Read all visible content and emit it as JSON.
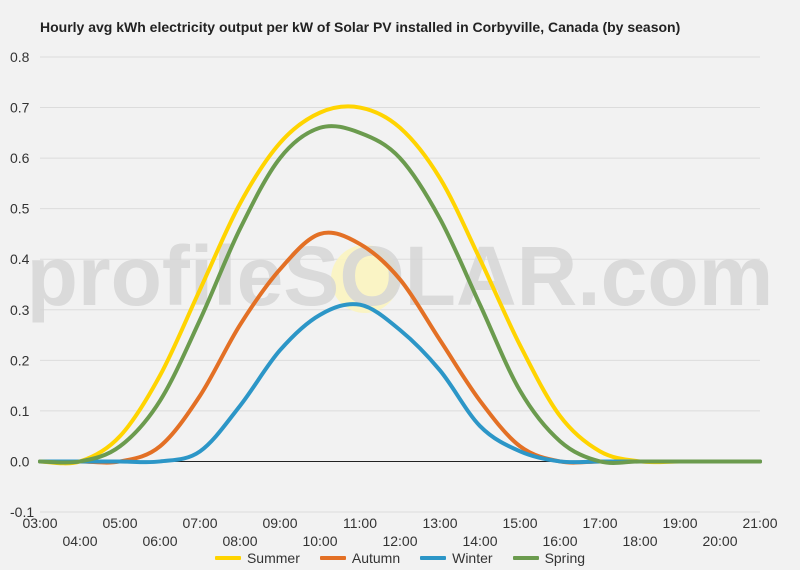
{
  "chart_data": {
    "type": "line",
    "title": "Hourly avg kWh electricity output per kW of Solar PV installed in Corbyville, Canada (by season)",
    "xlabel": "",
    "ylabel": "",
    "ylim": [
      -0.1,
      0.8
    ],
    "yticks": [
      "-0.1",
      "0.0",
      "0.1",
      "0.2",
      "0.3",
      "0.4",
      "0.5",
      "0.6",
      "0.7",
      "0.8"
    ],
    "xlim": [
      3,
      21
    ],
    "xticks": [
      "03:00",
      "04:00",
      "05:00",
      "06:00",
      "07:00",
      "08:00",
      "09:00",
      "10:00",
      "11:00",
      "12:00",
      "13:00",
      "14:00",
      "15:00",
      "16:00",
      "17:00",
      "18:00",
      "19:00",
      "20:00",
      "21:00"
    ],
    "x": [
      3,
      4,
      5,
      6,
      7,
      8,
      9,
      10,
      11,
      12,
      13,
      14,
      15,
      16,
      17,
      18,
      19,
      20,
      21
    ],
    "grid": true,
    "legend_position": "bottom",
    "watermark": "profileSOLAR.com",
    "series": [
      {
        "name": "Summer",
        "color": "#ffd400",
        "values": [
          0.0,
          0.0,
          0.05,
          0.17,
          0.34,
          0.51,
          0.63,
          0.69,
          0.7,
          0.66,
          0.56,
          0.4,
          0.23,
          0.09,
          0.02,
          0.0,
          0.0,
          0.0,
          0.0
        ]
      },
      {
        "name": "Autumn",
        "color": "#e37025",
        "values": [
          0.0,
          0.0,
          0.0,
          0.03,
          0.13,
          0.27,
          0.38,
          0.45,
          0.43,
          0.36,
          0.24,
          0.12,
          0.03,
          0.0,
          0.0,
          0.0,
          0.0,
          0.0,
          0.0
        ]
      },
      {
        "name": "Winter",
        "color": "#2c96c7",
        "values": [
          0.0,
          0.0,
          0.0,
          0.0,
          0.02,
          0.11,
          0.22,
          0.29,
          0.31,
          0.26,
          0.18,
          0.07,
          0.02,
          0.0,
          0.0,
          0.0,
          0.0,
          0.0,
          0.0
        ]
      },
      {
        "name": "Spring",
        "color": "#6b9b4e",
        "values": [
          0.0,
          0.0,
          0.03,
          0.12,
          0.28,
          0.46,
          0.6,
          0.66,
          0.65,
          0.6,
          0.48,
          0.31,
          0.14,
          0.04,
          0.0,
          0.0,
          0.0,
          0.0,
          0.0
        ]
      }
    ]
  }
}
